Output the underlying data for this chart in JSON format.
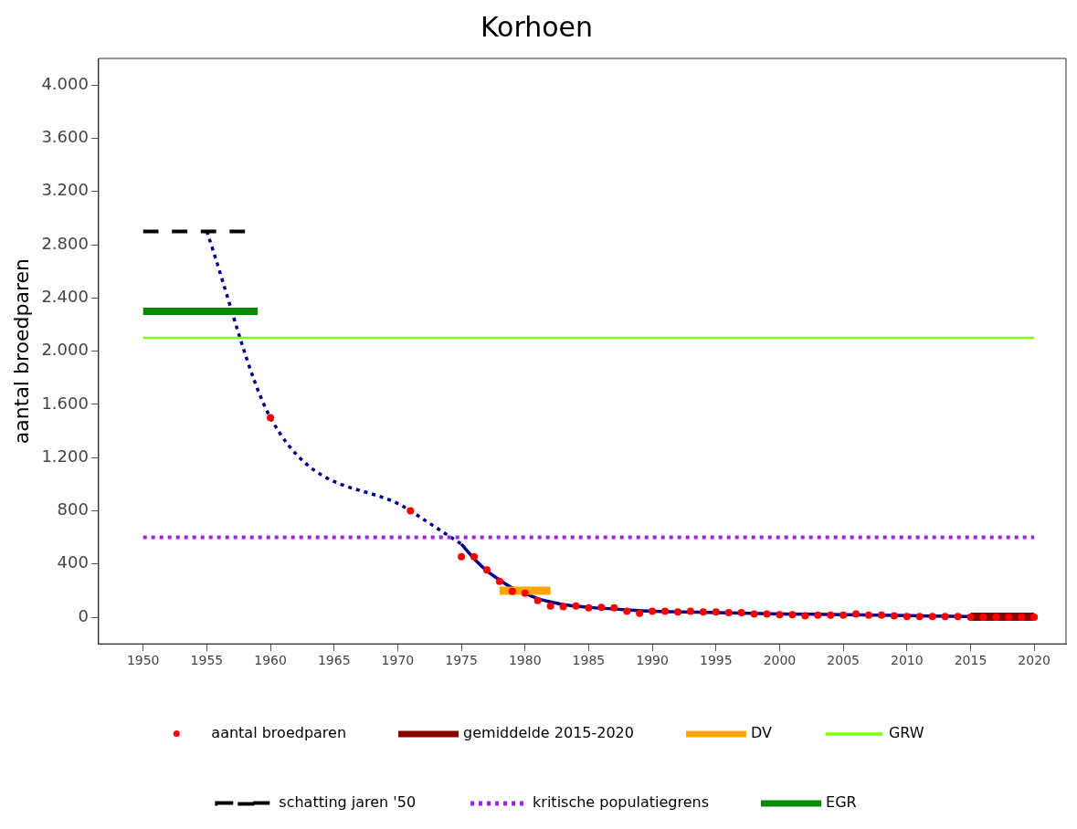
{
  "chart_data": {
    "type": "line",
    "title": "Korhoen",
    "ylabel": "aantal broedparen",
    "xlim": [
      1946.5,
      2022.5
    ],
    "xticks": [
      1950,
      1955,
      1960,
      1965,
      1970,
      1975,
      1980,
      1985,
      1990,
      1995,
      2000,
      2005,
      2010,
      2015,
      2020
    ],
    "ylim": [
      -200,
      4200
    ],
    "yticks": [
      {
        "value": 0,
        "label": "0"
      },
      {
        "value": 400,
        "label": "400"
      },
      {
        "value": 800,
        "label": "800"
      },
      {
        "value": 1200,
        "label": "1.200"
      },
      {
        "value": 1600,
        "label": "1.600"
      },
      {
        "value": 2000,
        "label": "2.000"
      },
      {
        "value": 2400,
        "label": "2.400"
      },
      {
        "value": 2800,
        "label": "2.800"
      },
      {
        "value": 3200,
        "label": "3.200"
      },
      {
        "value": 3600,
        "label": "3.600"
      },
      {
        "value": 4000,
        "label": "4.000"
      }
    ],
    "grid": false,
    "legend": "bottom",
    "series": [
      {
        "name": "aantal broedparen",
        "type": "scatter",
        "marker": "circle",
        "color": "#ff0000",
        "x": [
          1960,
          1971,
          1975,
          1976,
          1977,
          1978,
          1979,
          1980,
          1981,
          1982,
          1983,
          1984,
          1985,
          1986,
          1987,
          1988,
          1989,
          1990,
          1991,
          1992,
          1993,
          1994,
          1995,
          1996,
          1997,
          1998,
          1999,
          2000,
          2001,
          2002,
          2003,
          2004,
          2005,
          2006,
          2007,
          2008,
          2009,
          2010,
          2011,
          2012,
          2013,
          2014,
          2015,
          2016,
          2017,
          2018,
          2019,
          2020
        ],
        "values": [
          1500,
          800,
          455,
          455,
          355,
          270,
          195,
          180,
          125,
          85,
          80,
          85,
          70,
          75,
          70,
          45,
          30,
          45,
          45,
          40,
          45,
          40,
          40,
          35,
          35,
          25,
          25,
          20,
          20,
          10,
          15,
          15,
          15,
          25,
          15,
          15,
          10,
          5,
          5,
          5,
          5,
          5,
          0,
          0,
          0,
          0,
          0,
          0
        ]
      },
      {
        "name": "gemiddelde 2015-2020",
        "marker": "none",
        "line_style": "solid",
        "color": "#8b0000",
        "x": [
          2015,
          2020
        ],
        "values": [
          3,
          3
        ]
      },
      {
        "name": "DV",
        "marker": "none",
        "line_style": "solid",
        "color": "#ffa500",
        "x": [
          1978,
          1982
        ],
        "values": [
          200,
          200
        ]
      },
      {
        "name": "GRW",
        "marker": "none",
        "line_style": "solid",
        "color": "#7fff00",
        "x": [
          1950,
          2020
        ],
        "values": [
          2100,
          2100
        ]
      },
      {
        "name": "schatting jaren '50",
        "marker": "none",
        "line_style": "dashed",
        "color": "#000000",
        "x": [
          1950,
          1958
        ],
        "values": [
          2900,
          2900
        ]
      },
      {
        "name": "kritische populatiegrens",
        "marker": "none",
        "line_style": "dotted",
        "color": "#a020f0",
        "x": [
          1950,
          2020
        ],
        "values": [
          600,
          600
        ]
      },
      {
        "name": "EGR",
        "marker": "none",
        "line_style": "solid",
        "color": "#008b00",
        "x": [
          1950,
          1959
        ],
        "values": [
          2300,
          2300
        ]
      },
      {
        "marker": "none",
        "line_style": "dotted",
        "color": "#00008b",
        "x": [
          1955,
          1960,
          1971,
          1975
        ],
        "values": [
          2900,
          1500,
          800,
          550
        ]
      },
      {
        "marker": "none",
        "line_style": "solid",
        "color": "#00008b",
        "x": [
          1975,
          1976,
          1977,
          1978,
          1979,
          1980,
          1981,
          1982,
          1983,
          1985,
          1988,
          1990,
          1995,
          2000,
          2005,
          2010,
          2015
        ],
        "values": [
          550,
          440,
          350,
          280,
          220,
          180,
          140,
          115,
          95,
          75,
          55,
          45,
          35,
          25,
          20,
          12,
          5
        ]
      }
    ]
  }
}
